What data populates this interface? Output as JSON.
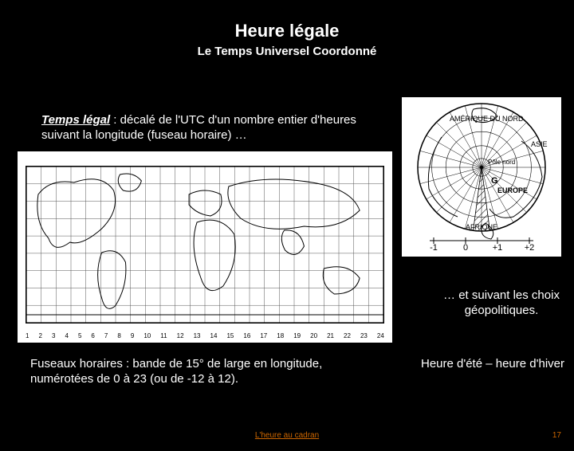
{
  "title": "Heure légale",
  "subtitle": "Le Temps Universel Coordonné",
  "intro_lead": "Temps légal",
  "intro_rest": " : décalé de l'UTC d'un nombre entier d'heures suivant la longitude (fuseau horaire) …",
  "geo_text": "… et suivant les choix géopolitiques.",
  "fuseaux_text": "Fuseaux horaires : bande de 15° de large en longitude, numérotées de 0 à 23 (ou de -12 à 12).",
  "dst_text": "Heure d'été – heure d'hiver",
  "footer_center": "L'heure au cadran",
  "footer_page": "17",
  "worldmap": {
    "xlabels": [
      "1",
      "2",
      "3",
      "4",
      "5",
      "6",
      "7",
      "8",
      "9",
      "10",
      "11",
      "12",
      "13",
      "14",
      "15",
      "16",
      "17",
      "18",
      "19",
      "20",
      "21",
      "22",
      "23",
      "24"
    ],
    "ylat": [
      -60,
      -45,
      -30,
      -15,
      0,
      15,
      30,
      45,
      60,
      75
    ],
    "stroke": "#000000",
    "grid_color": "#555555",
    "land_stroke": "#000000",
    "land_fill": "none",
    "grid_width": 0.5
  },
  "globe": {
    "labels": {
      "top": "AMÉRIQUE DU NORD",
      "pole": "Pôle nord",
      "right": "ASIE",
      "center": "EUROPE",
      "bottom": "AFRIQUE",
      "g": "G"
    },
    "tz_marks": [
      "-1",
      "0",
      "+1",
      "+2"
    ],
    "stroke": "#000000",
    "hatch_color": "#000000",
    "bg": "#ffffff"
  },
  "colors": {
    "page_bg": "#000000",
    "text": "#ffffff",
    "accent": "#cc6600",
    "image_bg": "#ffffff"
  }
}
